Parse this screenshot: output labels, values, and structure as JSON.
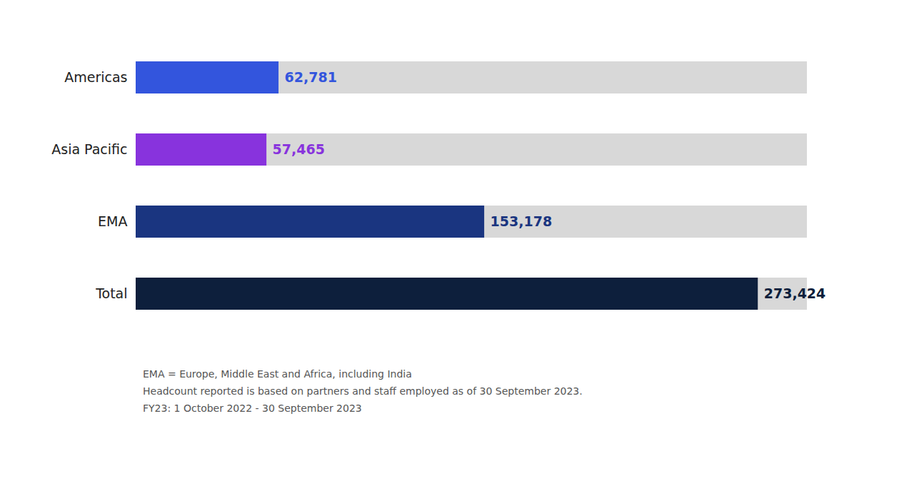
{
  "chart_data": {
    "type": "bar",
    "orientation": "horizontal",
    "categories": [
      "Americas",
      "Asia Pacific",
      "EMA",
      "Total"
    ],
    "values": [
      62781,
      57465,
      153178,
      273424
    ],
    "value_labels": [
      "62,781",
      "57,465",
      "153,178",
      "273,424"
    ],
    "colors": [
      "#3355dd",
      "#8833dd",
      "#1a3580",
      "#0d1f3c"
    ],
    "xlim": [
      0,
      295000
    ],
    "data_labels": true,
    "tick_labels": "y",
    "grid": false,
    "annotations": [
      "EMA = Europe, Middle East and Africa, including India",
      "Headcount reported is based on partners and staff employed as of 30 September 2023.",
      "FY23: 1 October 2022 - 30 September 2023"
    ]
  }
}
